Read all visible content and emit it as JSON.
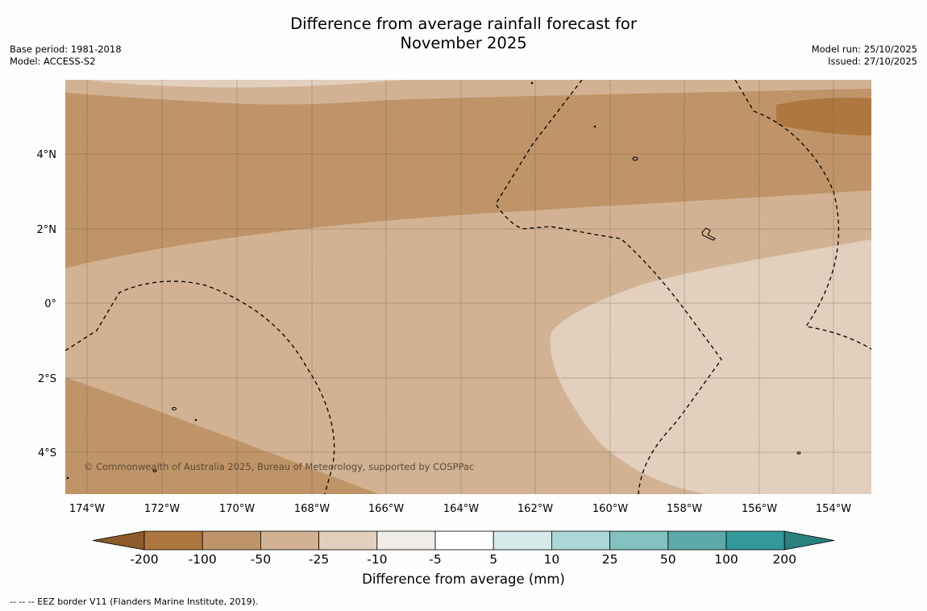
{
  "title": {
    "line1": "Difference from average rainfall forecast for",
    "line2": "November 2025"
  },
  "meta_left": {
    "base_period": "Base period: 1981-2018",
    "model": "Model: ACCESS-S2"
  },
  "meta_right": {
    "model_run": "Model run: 25/10/2025",
    "issued": "Issued: 27/10/2025"
  },
  "map": {
    "lon_ticks": [
      "174°W",
      "172°W",
      "170°W",
      "168°W",
      "166°W",
      "164°W",
      "162°W",
      "160°W",
      "158°W",
      "156°W",
      "154°W"
    ],
    "lat_ticks": [
      "4°N",
      "2°N",
      "0°",
      "2°S",
      "4°S"
    ],
    "copyright": "© Commonwealth of Australia 2025, Bureau of Meteorology, supported by COSPPac"
  },
  "colorbar": {
    "title": "Difference from average (mm)",
    "tick_labels": [
      "-200",
      "-100",
      "-50",
      "-25",
      "-10",
      "-5",
      "5",
      "10",
      "25",
      "50",
      "100",
      "200"
    ],
    "colors": [
      "#8d5a2b",
      "#ad773f",
      "#c09469",
      "#d2b293",
      "#e2cfbd",
      "#f0ece7",
      "#ffffff",
      "#d6ebe9",
      "#acd7d7",
      "#82c2c0",
      "#5ba9a8",
      "#33999a",
      "#2a7f7f"
    ],
    "map_colors": {
      "c_m200": "#ad773f",
      "c_m100": "#c09469",
      "c_m50": "#d2b293",
      "c_m25": "#e2cfbd"
    }
  },
  "footer": "--  --  -- EEZ border V11 (Flanders Marine Institute, 2019)."
}
